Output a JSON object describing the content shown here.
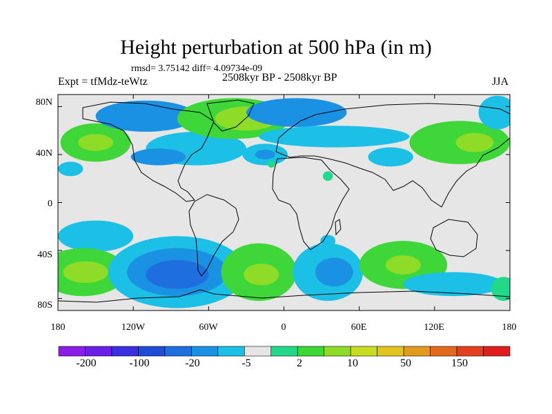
{
  "title": "Height perturbation at 500 hPa (in m)",
  "stats": "rmsd= 3.75142 diff= 4.09734e-09",
  "experiment": "Expt = tfMdz-teWtz",
  "period": "2508kyr BP - 2508kyr BP",
  "season": "JJA",
  "lat_ticks": [
    "80N",
    "40N",
    "0",
    "40S",
    "80S"
  ],
  "lon_ticks": [
    "180",
    "120W",
    "60W",
    "0",
    "60E",
    "120E",
    "180"
  ],
  "colorbar": {
    "colors": [
      "#8a1ee6",
      "#6a1ee8",
      "#3c2fe0",
      "#1f4bd6",
      "#1e6ee0",
      "#1b91e3",
      "#1cc0e6",
      "#e6e6e6",
      "#22d98a",
      "#3fd63a",
      "#8fdc28",
      "#c8dc22",
      "#e1c51e",
      "#e29a1e",
      "#e26a1e",
      "#e2401e",
      "#e01e1e"
    ],
    "labels": [
      "-200",
      "-100",
      "-20",
      "-5",
      "2",
      "10",
      "50",
      "150"
    ]
  },
  "map": {
    "background": "#e6e6e6",
    "lat_range": [
      -90,
      90
    ],
    "lon_range": [
      -180,
      180
    ],
    "blobs": [
      {
        "lon": -150,
        "lat": 50,
        "rx": 28,
        "ry": 16,
        "level": 9
      },
      {
        "lon": -150,
        "lat": 50,
        "rx": 14,
        "ry": 7,
        "level": 10
      },
      {
        "lon": -170,
        "lat": 28,
        "rx": 10,
        "ry": 6,
        "level": 6
      },
      {
        "lon": -110,
        "lat": 72,
        "rx": 40,
        "ry": 13,
        "level": 5
      },
      {
        "lon": -70,
        "lat": 45,
        "rx": 40,
        "ry": 14,
        "level": 6
      },
      {
        "lon": -100,
        "lat": 38,
        "rx": 22,
        "ry": 7,
        "level": 5
      },
      {
        "lon": -40,
        "lat": 70,
        "rx": 45,
        "ry": 17,
        "level": 9
      },
      {
        "lon": -30,
        "lat": 70,
        "rx": 25,
        "ry": 10,
        "level": 10
      },
      {
        "lon": 10,
        "lat": 75,
        "rx": 40,
        "ry": 12,
        "level": 5
      },
      {
        "lon": 40,
        "lat": 55,
        "rx": 60,
        "ry": 9,
        "level": 6
      },
      {
        "lon": -15,
        "lat": 40,
        "rx": 18,
        "ry": 9,
        "level": 6
      },
      {
        "lon": -15,
        "lat": 40,
        "rx": 8,
        "ry": 4,
        "level": 5
      },
      {
        "lon": 85,
        "lat": 38,
        "rx": 18,
        "ry": 8,
        "level": 6
      },
      {
        "lon": 140,
        "lat": 50,
        "rx": 40,
        "ry": 18,
        "level": 9
      },
      {
        "lon": 152,
        "lat": 50,
        "rx": 15,
        "ry": 8,
        "level": 10
      },
      {
        "lon": 170,
        "lat": 75,
        "rx": 15,
        "ry": 14,
        "level": 6
      },
      {
        "lon": -10,
        "lat": 32,
        "rx": 3,
        "ry": 3,
        "level": 8
      },
      {
        "lon": 35,
        "lat": 22,
        "rx": 4,
        "ry": 4,
        "level": 8
      },
      {
        "lon": -150,
        "lat": -28,
        "rx": 30,
        "ry": 13,
        "level": 6
      },
      {
        "lon": -160,
        "lat": -58,
        "rx": 35,
        "ry": 20,
        "level": 9
      },
      {
        "lon": -158,
        "lat": -58,
        "rx": 18,
        "ry": 9,
        "level": 10
      },
      {
        "lon": -85,
        "lat": -58,
        "rx": 55,
        "ry": 30,
        "level": 6
      },
      {
        "lon": -85,
        "lat": -58,
        "rx": 40,
        "ry": 20,
        "level": 5
      },
      {
        "lon": -85,
        "lat": -60,
        "rx": 25,
        "ry": 12,
        "level": 4
      },
      {
        "lon": -20,
        "lat": -58,
        "rx": 30,
        "ry": 24,
        "level": 9
      },
      {
        "lon": -18,
        "lat": -60,
        "rx": 14,
        "ry": 9,
        "level": 10
      },
      {
        "lon": 35,
        "lat": -58,
        "rx": 28,
        "ry": 24,
        "level": 6
      },
      {
        "lon": 40,
        "lat": -58,
        "rx": 15,
        "ry": 12,
        "level": 5
      },
      {
        "lon": 95,
        "lat": -52,
        "rx": 35,
        "ry": 20,
        "level": 9
      },
      {
        "lon": 95,
        "lat": -52,
        "rx": 14,
        "ry": 8,
        "level": 10
      },
      {
        "lon": 135,
        "lat": -68,
        "rx": 40,
        "ry": 10,
        "level": 6
      },
      {
        "lon": 175,
        "lat": -72,
        "rx": 10,
        "ry": 10,
        "level": 8
      },
      {
        "lon": 35,
        "lat": -32,
        "rx": 6,
        "ry": 5,
        "level": 6
      }
    ]
  }
}
